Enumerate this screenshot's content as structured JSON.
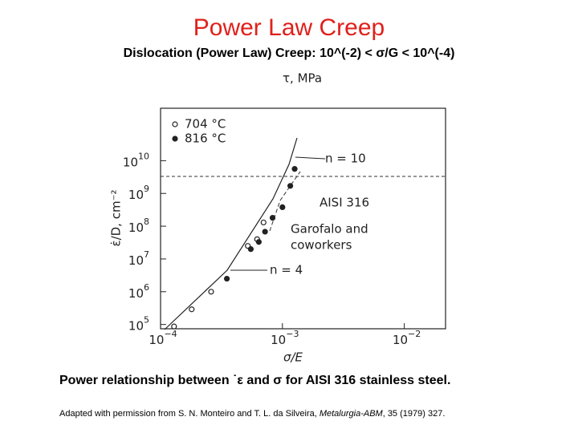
{
  "slide": {
    "title": "Power Law Creep",
    "subtitle": "Dislocation (Power Law) Creep: 10^(-2) < σ/G < 10^(-4)",
    "caption": "Power relationship between ˙ε and σ for AISI 316 stainless steel.",
    "credit": [
      "Adapted with permission from S. N. Monteiro and T. L. da Silveira, ",
      "Metalurgia-ABM",
      ", 35 (1979) 327."
    ]
  },
  "chart_data": {
    "type": "scatter",
    "x_label": "σ/E",
    "y_label": "ε̇/D, cm⁻²",
    "top_label": "τ, MPa",
    "x_log": true,
    "y_log": true,
    "xlim": [
      0.0001,
      0.0218
    ],
    "ylim": [
      74000,
      398000000000
    ],
    "xticks": [
      {
        "value": 0.0001,
        "label": "10",
        "sup": "−4"
      },
      {
        "value": 0.001,
        "label": "10",
        "sup": "−3"
      },
      {
        "value": 0.01,
        "label": "10",
        "sup": "−2"
      }
    ],
    "yticks": [
      {
        "value": 100000,
        "label": "10",
        "sup": "5"
      },
      {
        "value": 1000000,
        "label": "10",
        "sup": "6"
      },
      {
        "value": 10000000,
        "label": "10",
        "sup": "7"
      },
      {
        "value": 100000000,
        "label": "10",
        "sup": "8"
      },
      {
        "value": 1000000000,
        "label": "10",
        "sup": "9"
      },
      {
        "value": 10000000000,
        "label": "10",
        "sup": "10"
      }
    ],
    "series": [
      {
        "name": "704 °C",
        "marker": "open",
        "color": "#222",
        "x": [
          0.000129,
          0.00018,
          0.00026,
          0.00052,
          0.00062,
          0.0007
        ],
        "values": [
          87000,
          290000,
          1000000,
          25000000,
          40000000,
          130000000
        ]
      },
      {
        "name": "816 °C",
        "marker": "filled",
        "color": "#222",
        "x": [
          0.00035,
          0.00055,
          0.00064,
          0.00072,
          0.00083,
          0.001,
          0.00116,
          0.00126
        ],
        "values": [
          2500000,
          20000000,
          33000000,
          68000000,
          180000000,
          380000000,
          1700000000,
          5600000000
        ]
      }
    ],
    "annotations": [
      "n = 10",
      "AISI 316",
      "Garofalo and",
      "coworkers",
      "n = 4"
    ]
  }
}
